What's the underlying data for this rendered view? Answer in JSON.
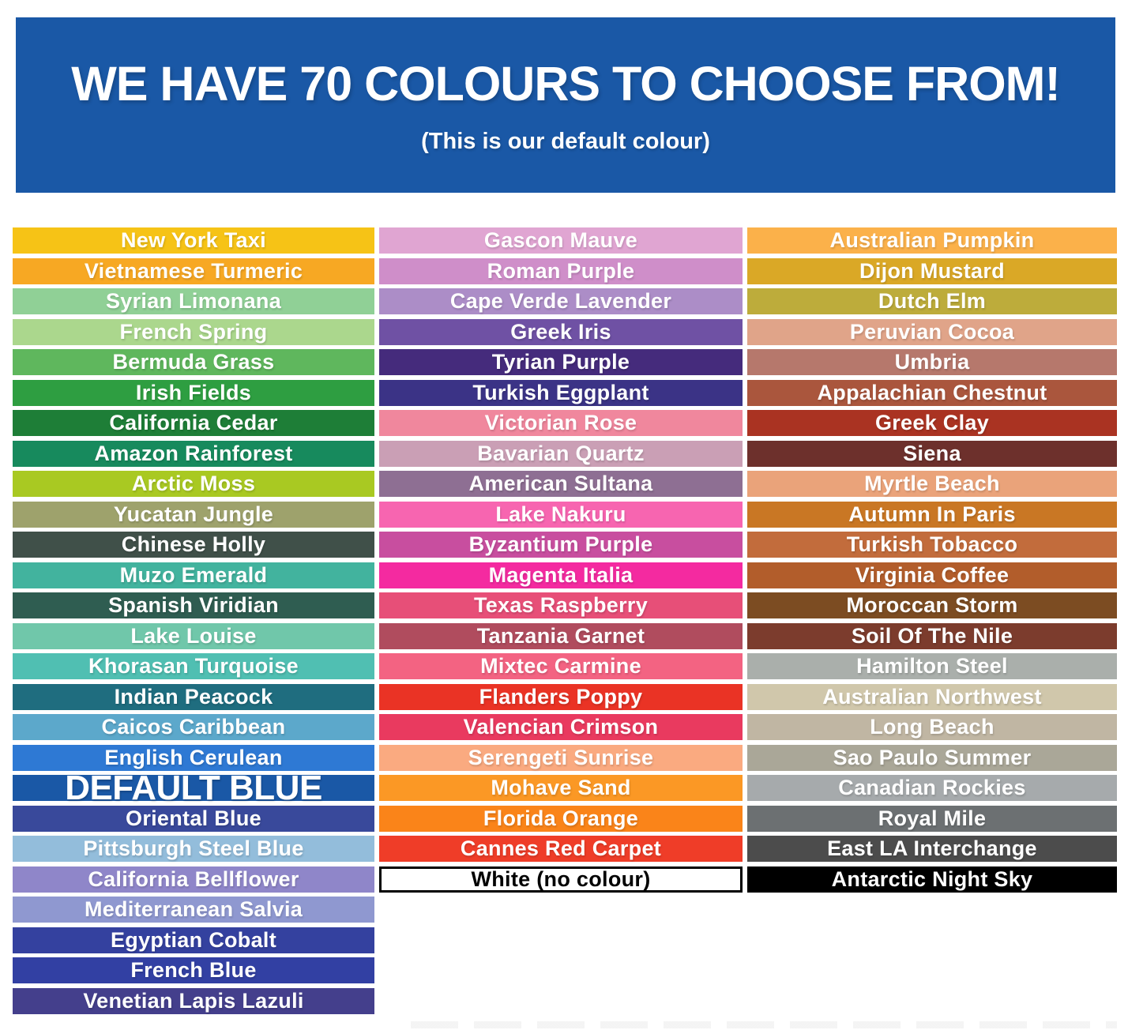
{
  "header": {
    "title": "WE HAVE 70 COLOURS TO CHOOSE FROM!",
    "subtitle": "(This is our default colour)",
    "background": "#1A58A6",
    "text_color": "#FFFFFF"
  },
  "columns": [
    {
      "swatches": [
        {
          "label": "New York Taxi",
          "color": "#F6C316"
        },
        {
          "label": "Vietnamese Turmeric",
          "color": "#F7A823"
        },
        {
          "label": "Syrian Limonana",
          "color": "#90D096"
        },
        {
          "label": "French Spring",
          "color": "#ABD78D"
        },
        {
          "label": "Bermuda Grass",
          "color": "#5FB75D"
        },
        {
          "label": "Irish Fields",
          "color": "#2E9E41"
        },
        {
          "label": "California Cedar",
          "color": "#1E7E37"
        },
        {
          "label": "Amazon Rainforest",
          "color": "#178A5D"
        },
        {
          "label": "Arctic Moss",
          "color": "#A9C922"
        },
        {
          "label": "Yucatan Jungle",
          "color": "#9EA26C"
        },
        {
          "label": "Chinese Holly",
          "color": "#405049"
        },
        {
          "label": "Muzo Emerald",
          "color": "#42B39E"
        },
        {
          "label": "Spanish Viridian",
          "color": "#2F5D51"
        },
        {
          "label": "Lake Louise",
          "color": "#70C7AA"
        },
        {
          "label": "Khorasan Turquoise",
          "color": "#50BFB2"
        },
        {
          "label": "Indian Peacock",
          "color": "#1F6D7F"
        },
        {
          "label": "Caicos Caribbean",
          "color": "#5CA8CB"
        },
        {
          "label": "English Cerulean",
          "color": "#2E79D4"
        },
        {
          "label": "DEFAULT BLUE",
          "color": "#1A58A6",
          "emphasis": true
        },
        {
          "label": "Oriental Blue",
          "color": "#39499B"
        },
        {
          "label": "Pittsburgh Steel Blue",
          "color": "#93BDDB"
        },
        {
          "label": "California Bellflower",
          "color": "#8F86C9"
        },
        {
          "label": "Mediterranean Salvia",
          "color": "#8F98D0"
        },
        {
          "label": "Egyptian Cobalt",
          "color": "#34419F"
        },
        {
          "label": "French Blue",
          "color": "#3240A3"
        },
        {
          "label": "Venetian Lapis Lazuli",
          "color": "#443F8C"
        }
      ]
    },
    {
      "swatches": [
        {
          "label": "Gascon Mauve",
          "color": "#E0A5D2"
        },
        {
          "label": "Roman Purple",
          "color": "#CF8EC9"
        },
        {
          "label": "Cape Verde Lavender",
          "color": "#AC8DC7"
        },
        {
          "label": "Greek Iris",
          "color": "#6F51A4"
        },
        {
          "label": "Tyrian Purple",
          "color": "#452B7C"
        },
        {
          "label": "Turkish Eggplant",
          "color": "#3B3386"
        },
        {
          "label": "Victorian Rose",
          "color": "#F0879D"
        },
        {
          "label": "Bavarian Quartz",
          "color": "#CA9FB5"
        },
        {
          "label": "American Sultana",
          "color": "#8E6F93"
        },
        {
          "label": "Lake Nakuru",
          "color": "#F765B0"
        },
        {
          "label": "Byzantium Purple",
          "color": "#C84E9F"
        },
        {
          "label": "Magenta Italia",
          "color": "#F42AA0"
        },
        {
          "label": "Texas Raspberry",
          "color": "#E74F78"
        },
        {
          "label": "Tanzania Garnet",
          "color": "#B04C5E"
        },
        {
          "label": "Mixtec Carmine",
          "color": "#F36382"
        },
        {
          "label": "Flanders Poppy",
          "color": "#EA3325"
        },
        {
          "label": "Valencian Crimson",
          "color": "#E93A5F"
        },
        {
          "label": "Serengeti Sunrise",
          "color": "#FAAA80"
        },
        {
          "label": "Mohave Sand",
          "color": "#FB9825"
        },
        {
          "label": "Florida Orange",
          "color": "#FA8419"
        },
        {
          "label": "Cannes Red Carpet",
          "color": "#EF3D28"
        },
        {
          "label": "White (no colour)",
          "color": "#FFFFFF",
          "text_color": "#000000",
          "border": "#000000"
        }
      ]
    },
    {
      "swatches": [
        {
          "label": "Australian Pumpkin",
          "color": "#FBB14A"
        },
        {
          "label": "Dijon Mustard",
          "color": "#DAA826"
        },
        {
          "label": "Dutch Elm",
          "color": "#BDAC3B"
        },
        {
          "label": "Peruvian Cocoa",
          "color": "#E0A489"
        },
        {
          "label": "Umbria",
          "color": "#B6786C"
        },
        {
          "label": "Appalachian Chestnut",
          "color": "#AA563D"
        },
        {
          "label": "Greek Clay",
          "color": "#AA3322"
        },
        {
          "label": "Siena",
          "color": "#6D302C"
        },
        {
          "label": "Myrtle Beach",
          "color": "#EAA37A"
        },
        {
          "label": "Autumn In Paris",
          "color": "#C97724"
        },
        {
          "label": "Turkish Tobacco",
          "color": "#C26C3C"
        },
        {
          "label": "Virginia Coffee",
          "color": "#B25D2B"
        },
        {
          "label": "Moroccan Storm",
          "color": "#7C4C22"
        },
        {
          "label": "Soil Of The Nile",
          "color": "#7C3C2D"
        },
        {
          "label": "Hamilton Steel",
          "color": "#AAAFAB"
        },
        {
          "label": "Australian Northwest",
          "color": "#D0C7AB"
        },
        {
          "label": "Long Beach",
          "color": "#C0B6A3"
        },
        {
          "label": "Sao Paulo Summer",
          "color": "#AAA798"
        },
        {
          "label": "Canadian Rockies",
          "color": "#A6AAAC"
        },
        {
          "label": "Royal Mile",
          "color": "#6C7072"
        },
        {
          "label": "East LA Interchange",
          "color": "#4C4C4C"
        },
        {
          "label": "Antarctic Night Sky",
          "color": "#000000"
        }
      ]
    }
  ]
}
